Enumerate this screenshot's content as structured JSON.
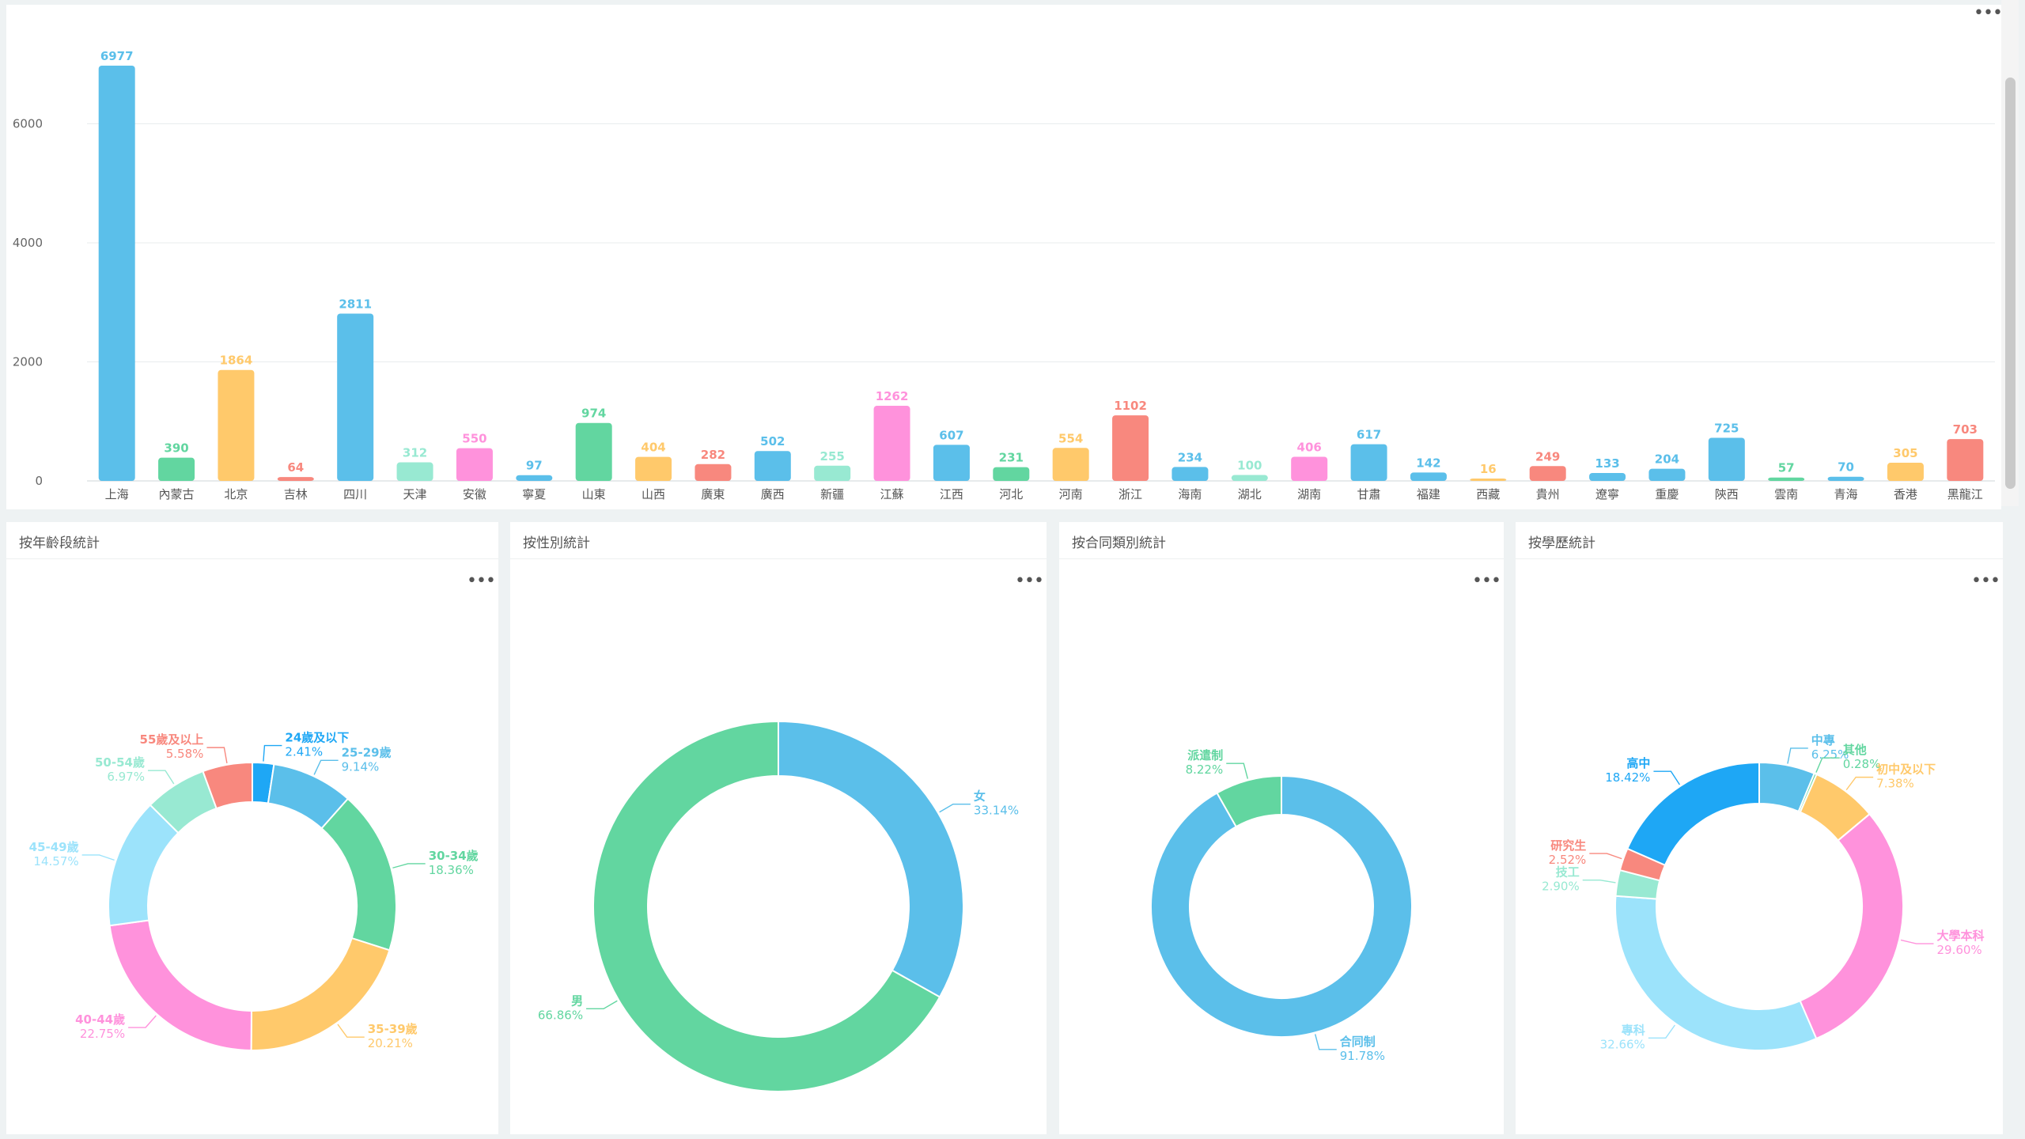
{
  "icons": {
    "more": "more-dots-icon"
  },
  "more_label": "•••",
  "bar_chart": {
    "chart_data": {
      "type": "bar",
      "categories": [
        "上海",
        "內蒙古",
        "北京",
        "吉林",
        "四川",
        "天津",
        "安徽",
        "寧夏",
        "山東",
        "山西",
        "廣東",
        "廣西",
        "新疆",
        "江蘇",
        "江西",
        "河北",
        "河南",
        "浙江",
        "海南",
        "湖北",
        "湖南",
        "甘肅",
        "福建",
        "西藏",
        "貴州",
        "遼寧",
        "重慶",
        "陝西",
        "雲南",
        "青海",
        "香港",
        "黑龍江"
      ],
      "values": [
        6977,
        390,
        1864,
        64,
        2811,
        312,
        550,
        97,
        974,
        404,
        282,
        502,
        255,
        1262,
        607,
        231,
        554,
        1102,
        234,
        100,
        406,
        617,
        142,
        16,
        249,
        133,
        204,
        725,
        57,
        70,
        305,
        703
      ],
      "ylim": [
        0,
        8000
      ],
      "yticks": [
        0,
        2000,
        4000,
        6000
      ],
      "colors": [
        "#5bbfea",
        "#62d6a0",
        "#ffc96b",
        "#f8887e",
        "#5bbfea",
        "#98e9d2",
        "#ff92dc",
        "#5bbfea",
        "#62d6a0",
        "#ffc96b",
        "#f8887e",
        "#5bbfea",
        "#98e9d2",
        "#ff92dc",
        "#5bbfea",
        "#62d6a0",
        "#ffc96b",
        "#f8887e",
        "#5bbfea",
        "#98e9d2",
        "#ff92dc",
        "#5bbfea",
        "#5bbfea",
        "#ffc96b",
        "#f8887e",
        "#5bbfea",
        "#5bbfea",
        "#5bbfea",
        "#62d6a0",
        "#5bbfea",
        "#ffc96b",
        "#f8887e"
      ],
      "grid": true
    }
  },
  "donuts": [
    {
      "title": "按年齡段統計",
      "chart_data": {
        "type": "pie",
        "labels": [
          "24歲及以下",
          "25-29歲",
          "30-34歲",
          "35-39歲",
          "40-44歲",
          "45-49歲",
          "50-54歲",
          "55歲及以上"
        ],
        "percents": [
          "2.41%",
          "9.14%",
          "18.36%",
          "20.21%",
          "22.75%",
          "14.57%",
          "6.97%",
          "5.58%"
        ],
        "values": [
          2.41,
          9.14,
          18.36,
          20.21,
          22.75,
          14.57,
          6.97,
          5.58
        ],
        "colors": [
          "#1ea7f5",
          "#5bbfea",
          "#62d6a0",
          "#ffc96b",
          "#ff92dc",
          "#9ce3fb",
          "#98e9d2",
          "#f8887e"
        ]
      }
    },
    {
      "title": "按性別統計",
      "chart_data": {
        "type": "pie",
        "labels": [
          "女",
          "男"
        ],
        "percents": [
          "33.14%",
          "66.86%"
        ],
        "values": [
          33.14,
          66.86
        ],
        "colors": [
          "#5bbfea",
          "#62d6a0"
        ]
      }
    },
    {
      "title": "按合同類別統計",
      "chart_data": {
        "type": "pie",
        "labels": [
          "合同制",
          "派遣制"
        ],
        "percents": [
          "91.78%",
          "8.22%"
        ],
        "values": [
          91.78,
          8.22
        ],
        "colors": [
          "#5bbfea",
          "#62d6a0"
        ]
      }
    },
    {
      "title": "按學歷統計",
      "chart_data": {
        "type": "pie",
        "labels": [
          "中專",
          "其他",
          "初中及以下",
          "大學本科",
          "專科",
          "技工",
          "研究生",
          "高中"
        ],
        "percents": [
          "6.25%",
          "0.28%",
          "7.38%",
          "29.60%",
          "32.66%",
          "2.90%",
          "2.52%",
          "18.42%"
        ],
        "values": [
          6.25,
          0.28,
          7.38,
          29.6,
          32.66,
          2.9,
          2.52,
          18.42
        ],
        "colors": [
          "#5bbfea",
          "#62d6a0",
          "#ffc96b",
          "#ff92dc",
          "#9ce3fb",
          "#98e9d2",
          "#f8887e",
          "#1ea7f5"
        ]
      }
    }
  ]
}
